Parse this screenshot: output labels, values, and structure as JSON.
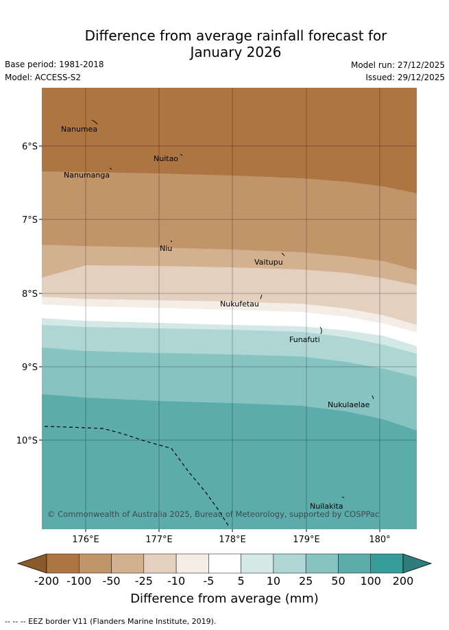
{
  "title_line1": "Difference from average rainfall forecast for",
  "title_line2": "January 2026",
  "base_period": "Base period: 1981-2018",
  "model": "Model: ACCESS-S2",
  "model_run": "Model run: 27/12/2025",
  "issued": "Issued: 29/12/2025",
  "map": {
    "lat_labels": [
      "6°S",
      "7°S",
      "8°S",
      "9°S",
      "10°S"
    ],
    "lon_labels": [
      "176°E",
      "177°E",
      "178°E",
      "179°E",
      "180°"
    ],
    "places": [
      "Nanumea",
      "Nuitao",
      "Nanumanga",
      "Niu",
      "Vaitupu",
      "Nukufetau",
      "Funafuti",
      "Nukulaelae",
      "Nuilakita"
    ],
    "copyright": "© Commonwealth of Australia 2025, Bureau of Meteorology, supported by COSPPac"
  },
  "colorbar": {
    "ticks": [
      "-200",
      "-100",
      "-50",
      "-25",
      "-10",
      "-5",
      "5",
      "10",
      "25",
      "50",
      "100",
      "200"
    ],
    "colors": [
      "#8b5a2b",
      "#ac7542",
      "#c0956a",
      "#d2b090",
      "#e3d0bf",
      "#f3ede6",
      "#ffffff",
      "#d4e8e6",
      "#aed6d5",
      "#86c3c1",
      "#5cacac",
      "#389c9b",
      "#2e7d7c"
    ],
    "title": "Difference from average (mm)"
  },
  "footnote": "--  --  -- EEZ border V11 (Flanders Marine Institute, 2019)."
}
